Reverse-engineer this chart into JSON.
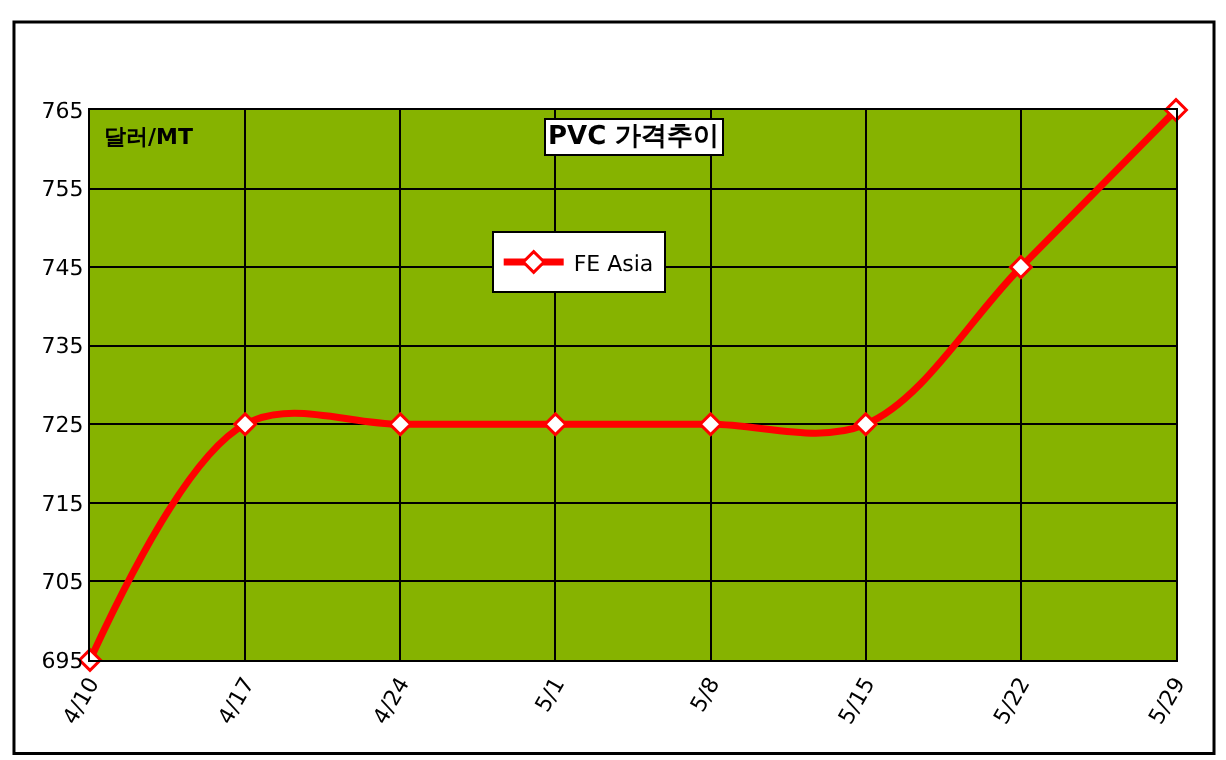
{
  "chart_data": {
    "type": "line",
    "title": "PVC 가격추이",
    "ylabel": "달러/MT",
    "categories": [
      "4/10",
      "4/17",
      "4/24",
      "5/1",
      "5/8",
      "5/15",
      "5/22",
      "5/29"
    ],
    "series": [
      {
        "name": "FE Asia",
        "color": "#ff0000",
        "values": [
          695,
          725,
          725,
          725,
          725,
          725,
          745,
          765
        ]
      }
    ],
    "ylim": [
      695,
      765
    ],
    "yticks": [
      695,
      705,
      715,
      725,
      735,
      745,
      755,
      765
    ],
    "grid": true,
    "legend": "top",
    "marker": "diamond",
    "line_style": "solid"
  }
}
